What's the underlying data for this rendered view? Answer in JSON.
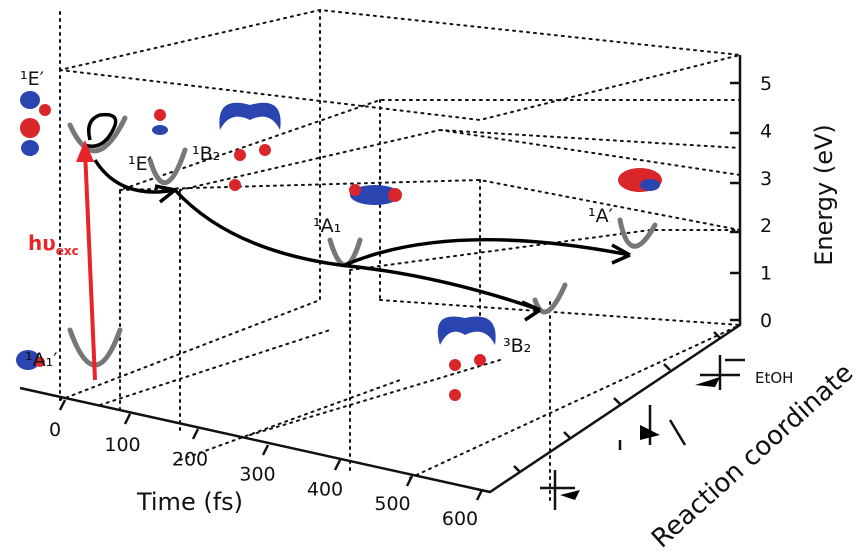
{
  "time_axis": {
    "label": "Time (fs)",
    "ticks": [
      0,
      100,
      200,
      300,
      400,
      500,
      600
    ]
  },
  "energy_axis": {
    "label": "Energy (eV)",
    "ticks": [
      0,
      1,
      2,
      3,
      4,
      5
    ]
  },
  "reaction_axis": {
    "label": "Reaction coordinate",
    "solvent": "EtOH"
  },
  "excitation": {
    "main": "hυ",
    "sub": "exc"
  },
  "states": [
    "¹E′",
    "¹E′",
    "¹B₂",
    "¹A₁",
    "¹A′",
    "³B₂",
    "¹A₁′"
  ]
}
